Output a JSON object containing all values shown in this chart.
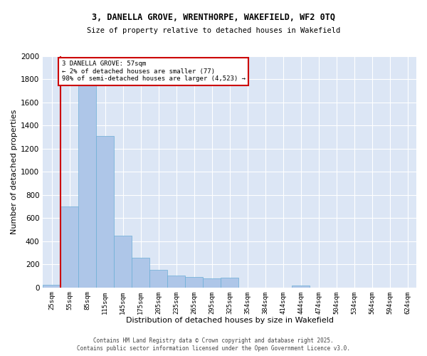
{
  "title_line1": "3, DANELLA GROVE, WRENTHORPE, WAKEFIELD, WF2 0TQ",
  "title_line2": "Size of property relative to detached houses in Wakefield",
  "xlabel": "Distribution of detached houses by size in Wakefield",
  "ylabel": "Number of detached properties",
  "annotation_text": "3 DANELLA GROVE: 57sqm\n← 2% of detached houses are smaller (77)\n98% of semi-detached houses are larger (4,523) →",
  "footer_line1": "Contains HM Land Registry data © Crown copyright and database right 2025.",
  "footer_line2": "Contains public sector information licensed under the Open Government Licence v3.0.",
  "bar_color": "#aec6e8",
  "bar_edge_color": "#6baed6",
  "vline_color": "#cc0000",
  "annotation_box_color": "#cc0000",
  "background_color": "#dce6f5",
  "categories": [
    "25sqm",
    "55sqm",
    "85sqm",
    "115sqm",
    "145sqm",
    "175sqm",
    "205sqm",
    "235sqm",
    "265sqm",
    "295sqm",
    "325sqm",
    "354sqm",
    "384sqm",
    "414sqm",
    "444sqm",
    "474sqm",
    "504sqm",
    "534sqm",
    "564sqm",
    "594sqm",
    "624sqm"
  ],
  "values": [
    22,
    700,
    1870,
    1310,
    450,
    260,
    150,
    105,
    90,
    80,
    85,
    0,
    0,
    0,
    18,
    0,
    0,
    0,
    0,
    0,
    0
  ],
  "ylim": [
    0,
    2000
  ],
  "yticks": [
    0,
    200,
    400,
    600,
    800,
    1000,
    1200,
    1400,
    1600,
    1800,
    2000
  ],
  "vline_x": 0.5,
  "figwidth": 6.0,
  "figheight": 5.0,
  "dpi": 100
}
